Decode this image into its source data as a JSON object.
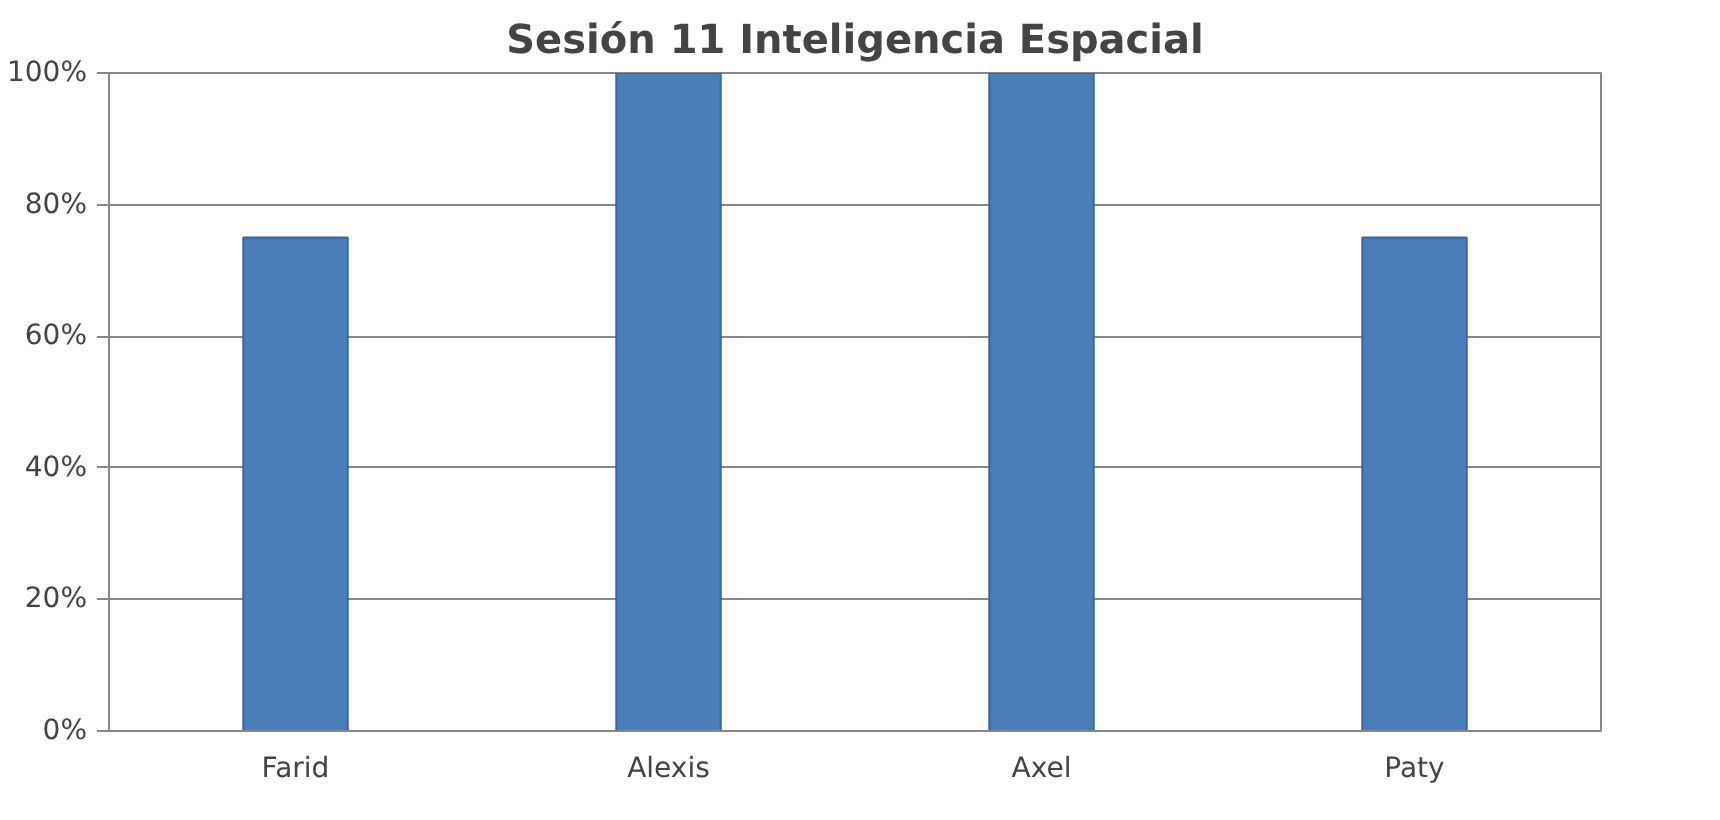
{
  "chart_data": {
    "type": "bar",
    "title": "Sesión 11 Inteligencia Espacial",
    "categories": [
      "Farid",
      "Alexis",
      "Axel",
      "Paty"
    ],
    "values": [
      75,
      100,
      100,
      75
    ],
    "color": "#4a7ebb",
    "ylim": [
      0,
      100
    ],
    "yticks": [
      {
        "value": 0,
        "label": "0%"
      },
      {
        "value": 20,
        "label": "20%"
      },
      {
        "value": 40,
        "label": "40%"
      },
      {
        "value": 60,
        "label": "60%"
      },
      {
        "value": 80,
        "label": "80%"
      },
      {
        "value": 100,
        "label": "100%"
      }
    ],
    "grid": "y"
  }
}
